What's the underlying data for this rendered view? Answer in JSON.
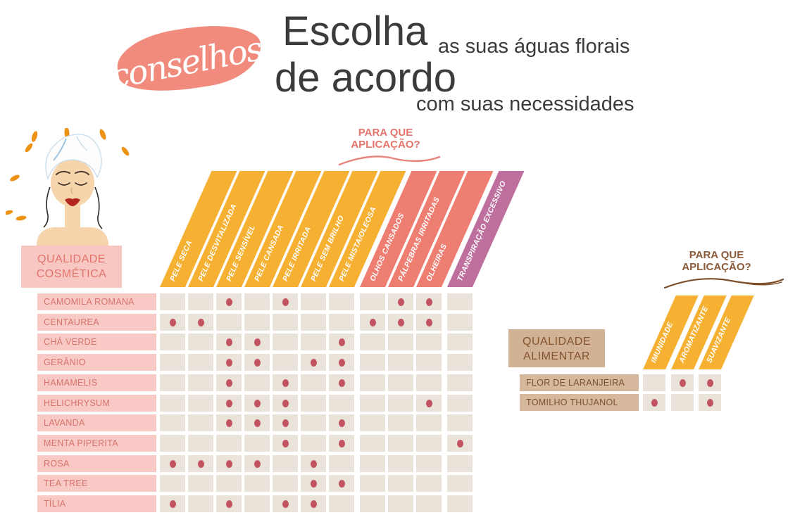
{
  "title": {
    "badge": "conselhos",
    "line1_big": "Escolha",
    "line1_small": "as suas águas florais",
    "line2_big": "de acordo",
    "line2_small": "com suas necessidades"
  },
  "application_question": {
    "line1": "PARA QUE",
    "line2": "APLICAÇÃO?"
  },
  "sections": {
    "cosmetic": {
      "label_line1": "QUALIDADE",
      "label_line2": "COSMÉTICA"
    },
    "food": {
      "label_line1": "QUALIDADE",
      "label_line2": "ALIMENTAR"
    }
  },
  "chart_data": [
    {
      "type": "table",
      "title": "QUALIDADE COSMÉTICA",
      "columns": [
        "PELE SECA",
        "PELE DESVITALIZADA",
        "PELE SENSÍVEL",
        "PELE CANSADA",
        "PELE IRRITADA",
        "PELE SEM BRILHO",
        "PELE MISTA/OLEOSA",
        "OLHOS CANSADOS",
        "PÁLPEBRAS IRRITADAS",
        "OLHEIRAS",
        "TRANSPIRAÇÃO EXCESSIVO"
      ],
      "column_groups": [
        "skin",
        "skin",
        "skin",
        "skin",
        "skin",
        "skin",
        "skin",
        "eyes",
        "eyes",
        "eyes",
        "sweat"
      ],
      "rows": [
        "CAMOMILA ROMANA",
        "CENTAUREA",
        "CHÁ VERDE",
        "GERÂNIO",
        "HAMAMELIS",
        "HELICHRYSUM",
        "LAVANDA",
        "MENTA PIPERITA",
        "ROSA",
        "TEA TREE",
        "TÍLIA"
      ],
      "matrix": [
        [
          0,
          0,
          1,
          0,
          1,
          0,
          0,
          0,
          1,
          1,
          0
        ],
        [
          1,
          1,
          0,
          0,
          0,
          0,
          0,
          1,
          1,
          1,
          0
        ],
        [
          0,
          0,
          1,
          1,
          0,
          0,
          1,
          0,
          0,
          0,
          0
        ],
        [
          0,
          0,
          1,
          1,
          0,
          1,
          1,
          0,
          0,
          0,
          0
        ],
        [
          0,
          0,
          1,
          0,
          1,
          0,
          1,
          0,
          0,
          0,
          0
        ],
        [
          0,
          0,
          1,
          1,
          1,
          0,
          0,
          0,
          0,
          1,
          0
        ],
        [
          0,
          0,
          1,
          1,
          1,
          0,
          1,
          0,
          0,
          0,
          0
        ],
        [
          0,
          0,
          0,
          0,
          1,
          0,
          1,
          0,
          0,
          0,
          1
        ],
        [
          1,
          1,
          1,
          1,
          0,
          1,
          0,
          0,
          0,
          0,
          0
        ],
        [
          0,
          0,
          0,
          0,
          0,
          1,
          1,
          0,
          0,
          0,
          0
        ],
        [
          1,
          0,
          1,
          0,
          1,
          1,
          0,
          0,
          0,
          0,
          0
        ]
      ]
    },
    {
      "type": "table",
      "title": "QUALIDADE ALIMENTAR",
      "columns": [
        "IMUNIDADE",
        "AROMATIZANTE",
        "SUAVIZANTE"
      ],
      "column_groups": [
        "food",
        "food",
        "food"
      ],
      "rows": [
        "FLOR DE LARANJEIRA",
        "TOMILHO THUJANOL"
      ],
      "matrix": [
        [
          0,
          1,
          1
        ],
        [
          1,
          0,
          1
        ]
      ]
    }
  ],
  "colors": {
    "yellow": "#F6B133",
    "salmon": "#EE7D72",
    "purple": "#BE6F9D",
    "cell_bg": "#EAE3DA",
    "dot": "#C25462",
    "cosmetic_row_bg": "#F9CAC5",
    "cosmetic_row_text": "#D5736C",
    "cosmetic_box_bg": "#F8C7C2",
    "cosmetic_box_text": "#E2746C",
    "food_row_bg": "#D6B99D",
    "food_row_text": "#7C5030",
    "food_box_bg": "#D2B294",
    "food_box_text": "#84552F",
    "title_text": "#3B3B3A",
    "badge_bg": "#F08B7D",
    "app_pink": "#E4756C",
    "app_brown": "#8B5A3B",
    "droplet": "#EC9215"
  }
}
